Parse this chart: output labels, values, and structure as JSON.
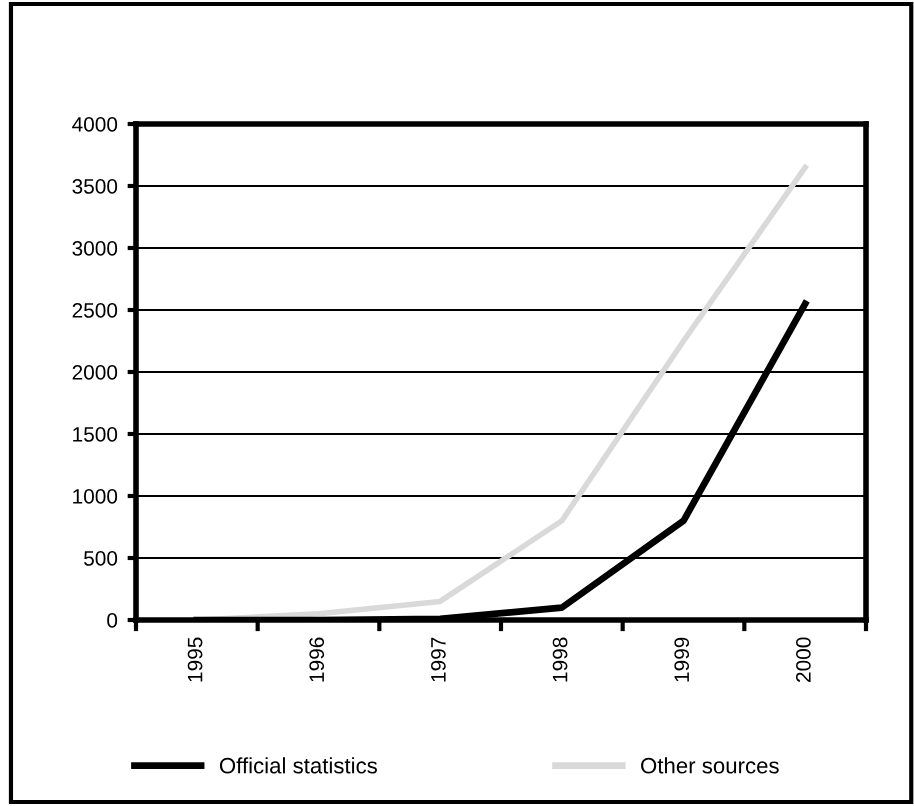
{
  "chart_data": {
    "type": "line",
    "categories": [
      "1995",
      "1996",
      "1997",
      "1998",
      "1999",
      "2000"
    ],
    "series": [
      {
        "name": "Official statistics",
        "color": "#000000",
        "values": [
          0,
          0,
          10,
          100,
          800,
          2550
        ]
      },
      {
        "name": "Other sources",
        "color": "#d9d9d9",
        "values": [
          0,
          50,
          150,
          800,
          2250,
          3650
        ]
      }
    ],
    "ylim": [
      0,
      4000
    ],
    "yticks": [
      0,
      500,
      1000,
      1500,
      2000,
      2500,
      3000,
      3500,
      4000
    ],
    "grid": "y",
    "legend": "bottom",
    "marker": "none",
    "line_style": "solid"
  }
}
